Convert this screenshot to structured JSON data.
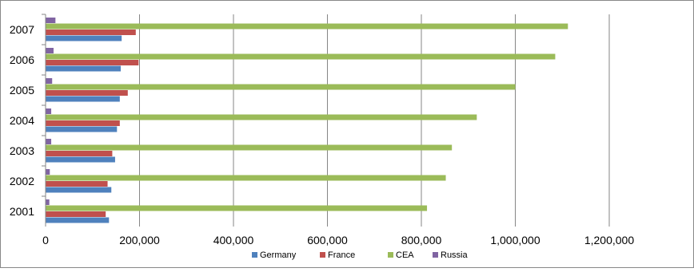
{
  "chart_data": {
    "type": "bar",
    "orientation": "horizontal",
    "title": "",
    "categories": [
      "2001",
      "2002",
      "2003",
      "2004",
      "2005",
      "2006",
      "2007"
    ],
    "series": [
      {
        "name": "Germany",
        "color": "#4f81bd",
        "values": [
          135000,
          140000,
          148000,
          152000,
          158000,
          160000,
          162000
        ]
      },
      {
        "name": "France",
        "color": "#c0504d",
        "values": [
          128000,
          132000,
          142000,
          158000,
          175000,
          198000,
          192000
        ]
      },
      {
        "name": "CEA",
        "color": "#9bbb59",
        "values": [
          812000,
          852000,
          865000,
          918000,
          1000000,
          1085000,
          1112000
        ]
      },
      {
        "name": "Russia",
        "color": "#8064a2",
        "values": [
          8000,
          9000,
          12000,
          12000,
          14000,
          17000,
          21000
        ]
      }
    ],
    "xlim": [
      0,
      1200000
    ],
    "x_ticks": [
      "0",
      "200,000",
      "400,000",
      "600,000",
      "800,000",
      "1,000,000",
      "1,200,000"
    ],
    "gridlines": true,
    "legend_position": "bottom"
  }
}
